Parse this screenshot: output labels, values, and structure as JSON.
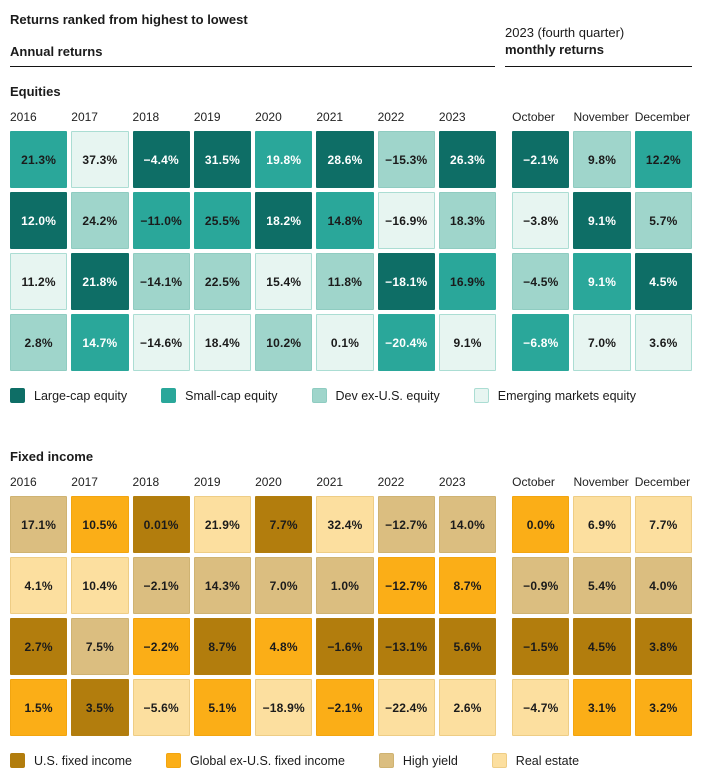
{
  "header": {
    "title": "Returns ranked from highest to lowest",
    "left_subtitle": "Annual returns",
    "right_subtitle_line1": "2023 (fourth quarter)",
    "right_subtitle_line2": "monthly returns"
  },
  "text_colors": {
    "d": "#1B1B1B",
    "w": "#FFFFFF"
  },
  "chart_data": [
    {
      "type": "heatmap",
      "title": "Equities",
      "columns": [
        "2016",
        "2017",
        "2018",
        "2019",
        "2020",
        "2021",
        "2022",
        "2023",
        "October",
        "November",
        "December"
      ],
      "annual_columns": 8,
      "monthly_columns": 3,
      "legend": [
        {
          "key": "large",
          "name": "Large-cap equity",
          "color": "#0E6E66",
          "border": "#0E6E66"
        },
        {
          "key": "small",
          "name": "Small-cap equity",
          "color": "#2AA79A",
          "border": "#2AA79A"
        },
        {
          "key": "dev",
          "name": "Dev ex-U.S. equity",
          "color": "#9FD5CB",
          "border": "#8FCCC1"
        },
        {
          "key": "emerging",
          "name": "Emerging markets equity",
          "color": "#E7F5F1",
          "border": "#ABDDD3"
        }
      ],
      "rows": [
        [
          {
            "v": "21.3%",
            "k": "small",
            "t": "d"
          },
          {
            "v": "37.3%",
            "k": "emerging",
            "t": "d"
          },
          {
            "v": "−4.4%",
            "k": "large",
            "t": "w"
          },
          {
            "v": "31.5%",
            "k": "large",
            "t": "w"
          },
          {
            "v": "19.8%",
            "k": "small",
            "t": "w"
          },
          {
            "v": "28.6%",
            "k": "large",
            "t": "w"
          },
          {
            "v": "−15.3%",
            "k": "dev",
            "t": "d"
          },
          {
            "v": "26.3%",
            "k": "large",
            "t": "w"
          },
          {
            "v": "−2.1%",
            "k": "large",
            "t": "w"
          },
          {
            "v": "9.8%",
            "k": "dev",
            "t": "d"
          },
          {
            "v": "12.2%",
            "k": "small",
            "t": "d"
          }
        ],
        [
          {
            "v": "12.0%",
            "k": "large",
            "t": "w"
          },
          {
            "v": "24.2%",
            "k": "dev",
            "t": "d"
          },
          {
            "v": "−11.0%",
            "k": "small",
            "t": "d"
          },
          {
            "v": "25.5%",
            "k": "small",
            "t": "d"
          },
          {
            "v": "18.2%",
            "k": "large",
            "t": "w"
          },
          {
            "v": "14.8%",
            "k": "small",
            "t": "d"
          },
          {
            "v": "−16.9%",
            "k": "emerging",
            "t": "d"
          },
          {
            "v": "18.3%",
            "k": "dev",
            "t": "d"
          },
          {
            "v": "−3.8%",
            "k": "emerging",
            "t": "d"
          },
          {
            "v": "9.1%",
            "k": "large",
            "t": "w"
          },
          {
            "v": "5.7%",
            "k": "dev",
            "t": "d"
          }
        ],
        [
          {
            "v": "11.2%",
            "k": "emerging",
            "t": "d"
          },
          {
            "v": "21.8%",
            "k": "large",
            "t": "w"
          },
          {
            "v": "−14.1%",
            "k": "dev",
            "t": "d"
          },
          {
            "v": "22.5%",
            "k": "dev",
            "t": "d"
          },
          {
            "v": "15.4%",
            "k": "emerging",
            "t": "d"
          },
          {
            "v": "11.8%",
            "k": "dev",
            "t": "d"
          },
          {
            "v": "−18.1%",
            "k": "large",
            "t": "w"
          },
          {
            "v": "16.9%",
            "k": "small",
            "t": "d"
          },
          {
            "v": "−4.5%",
            "k": "dev",
            "t": "d"
          },
          {
            "v": "9.1%",
            "k": "small",
            "t": "w"
          },
          {
            "v": "4.5%",
            "k": "large",
            "t": "w"
          }
        ],
        [
          {
            "v": "2.8%",
            "k": "dev",
            "t": "d"
          },
          {
            "v": "14.7%",
            "k": "small",
            "t": "w"
          },
          {
            "v": "−14.6%",
            "k": "emerging",
            "t": "d"
          },
          {
            "v": "18.4%",
            "k": "emerging",
            "t": "d"
          },
          {
            "v": "10.2%",
            "k": "dev",
            "t": "d"
          },
          {
            "v": "0.1%",
            "k": "emerging",
            "t": "d"
          },
          {
            "v": "−20.4%",
            "k": "small",
            "t": "w"
          },
          {
            "v": "9.1%",
            "k": "emerging",
            "t": "d"
          },
          {
            "v": "−6.8%",
            "k": "small",
            "t": "w"
          },
          {
            "v": "7.0%",
            "k": "emerging",
            "t": "d"
          },
          {
            "v": "3.6%",
            "k": "emerging",
            "t": "d"
          }
        ]
      ]
    },
    {
      "type": "heatmap",
      "title": "Fixed income",
      "columns": [
        "2016",
        "2017",
        "2018",
        "2019",
        "2020",
        "2021",
        "2022",
        "2023",
        "October",
        "November",
        "December"
      ],
      "annual_columns": 8,
      "monthly_columns": 3,
      "legend": [
        {
          "key": "us",
          "name": "U.S. fixed income",
          "color": "#B27D0D",
          "border": "#B27D0D"
        },
        {
          "key": "global",
          "name": "Global ex-U.S. fixed income",
          "color": "#FBAE17",
          "border": "#F2A510"
        },
        {
          "key": "high",
          "name": "High yield",
          "color": "#DBBE80",
          "border": "#CFB372"
        },
        {
          "key": "real",
          "name": "Real estate",
          "color": "#FCDF9F",
          "border": "#EECD85"
        }
      ],
      "rows": [
        [
          {
            "v": "17.1%",
            "k": "high",
            "t": "d"
          },
          {
            "v": "10.5%",
            "k": "global",
            "t": "d"
          },
          {
            "v": "0.01%",
            "k": "us",
            "t": "d"
          },
          {
            "v": "21.9%",
            "k": "real",
            "t": "d"
          },
          {
            "v": "7.7%",
            "k": "us",
            "t": "d"
          },
          {
            "v": "32.4%",
            "k": "real",
            "t": "d"
          },
          {
            "v": "−12.7%",
            "k": "high",
            "t": "d"
          },
          {
            "v": "14.0%",
            "k": "high",
            "t": "d"
          },
          {
            "v": "0.0%",
            "k": "global",
            "t": "d"
          },
          {
            "v": "6.9%",
            "k": "real",
            "t": "d"
          },
          {
            "v": "7.7%",
            "k": "real",
            "t": "d"
          }
        ],
        [
          {
            "v": "4.1%",
            "k": "real",
            "t": "d"
          },
          {
            "v": "10.4%",
            "k": "real",
            "t": "d"
          },
          {
            "v": "−2.1%",
            "k": "high",
            "t": "d"
          },
          {
            "v": "14.3%",
            "k": "high",
            "t": "d"
          },
          {
            "v": "7.0%",
            "k": "high",
            "t": "d"
          },
          {
            "v": "1.0%",
            "k": "high",
            "t": "d"
          },
          {
            "v": "−12.7%",
            "k": "global",
            "t": "d"
          },
          {
            "v": "8.7%",
            "k": "global",
            "t": "d"
          },
          {
            "v": "−0.9%",
            "k": "high",
            "t": "d"
          },
          {
            "v": "5.4%",
            "k": "high",
            "t": "d"
          },
          {
            "v": "4.0%",
            "k": "high",
            "t": "d"
          }
        ],
        [
          {
            "v": "2.7%",
            "k": "us",
            "t": "d"
          },
          {
            "v": "7.5%",
            "k": "high",
            "t": "d"
          },
          {
            "v": "−2.2%",
            "k": "global",
            "t": "d"
          },
          {
            "v": "8.7%",
            "k": "us",
            "t": "d"
          },
          {
            "v": "4.8%",
            "k": "global",
            "t": "d"
          },
          {
            "v": "−1.6%",
            "k": "us",
            "t": "d"
          },
          {
            "v": "−13.1%",
            "k": "us",
            "t": "d"
          },
          {
            "v": "5.6%",
            "k": "us",
            "t": "d"
          },
          {
            "v": "−1.5%",
            "k": "us",
            "t": "d"
          },
          {
            "v": "4.5%",
            "k": "us",
            "t": "d"
          },
          {
            "v": "3.8%",
            "k": "us",
            "t": "d"
          }
        ],
        [
          {
            "v": "1.5%",
            "k": "global",
            "t": "d"
          },
          {
            "v": "3.5%",
            "k": "us",
            "t": "d"
          },
          {
            "v": "−5.6%",
            "k": "real",
            "t": "d"
          },
          {
            "v": "5.1%",
            "k": "global",
            "t": "d"
          },
          {
            "v": "−18.9%",
            "k": "real",
            "t": "d"
          },
          {
            "v": "−2.1%",
            "k": "global",
            "t": "d"
          },
          {
            "v": "−22.4%",
            "k": "real",
            "t": "d"
          },
          {
            "v": "2.6%",
            "k": "real",
            "t": "d"
          },
          {
            "v": "−4.7%",
            "k": "real",
            "t": "d"
          },
          {
            "v": "3.1%",
            "k": "global",
            "t": "d"
          },
          {
            "v": "3.2%",
            "k": "global",
            "t": "d"
          }
        ]
      ]
    }
  ]
}
